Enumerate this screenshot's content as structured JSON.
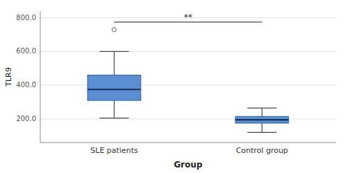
{
  "chart_data": {
    "type": "box",
    "categories": [
      "SLE patients",
      "Control group"
    ],
    "boxes": [
      {
        "median": 375,
        "q1": 310,
        "q3": 460,
        "whisker_low": 205,
        "whisker_high": 600,
        "outliers": [
          730
        ]
      },
      {
        "median": 195,
        "q1": 175,
        "q3": 215,
        "whisker_low": 120,
        "whisker_high": 265,
        "outliers": []
      }
    ],
    "color": "#5B8FD4",
    "ylabel": "TLR9",
    "xlabel": "Group",
    "ylim": [
      60,
      840
    ],
    "yticks": [
      {
        "value": 200,
        "label": "200.0"
      },
      {
        "value": 400,
        "label": "400.0"
      },
      {
        "value": 600,
        "label": "600.0"
      },
      {
        "value": 800,
        "label": "800.0"
      }
    ],
    "grid": true,
    "annotations": [
      {
        "text": "**",
        "y": 775,
        "x1": "SLE patients",
        "x2": "Control group"
      }
    ]
  }
}
